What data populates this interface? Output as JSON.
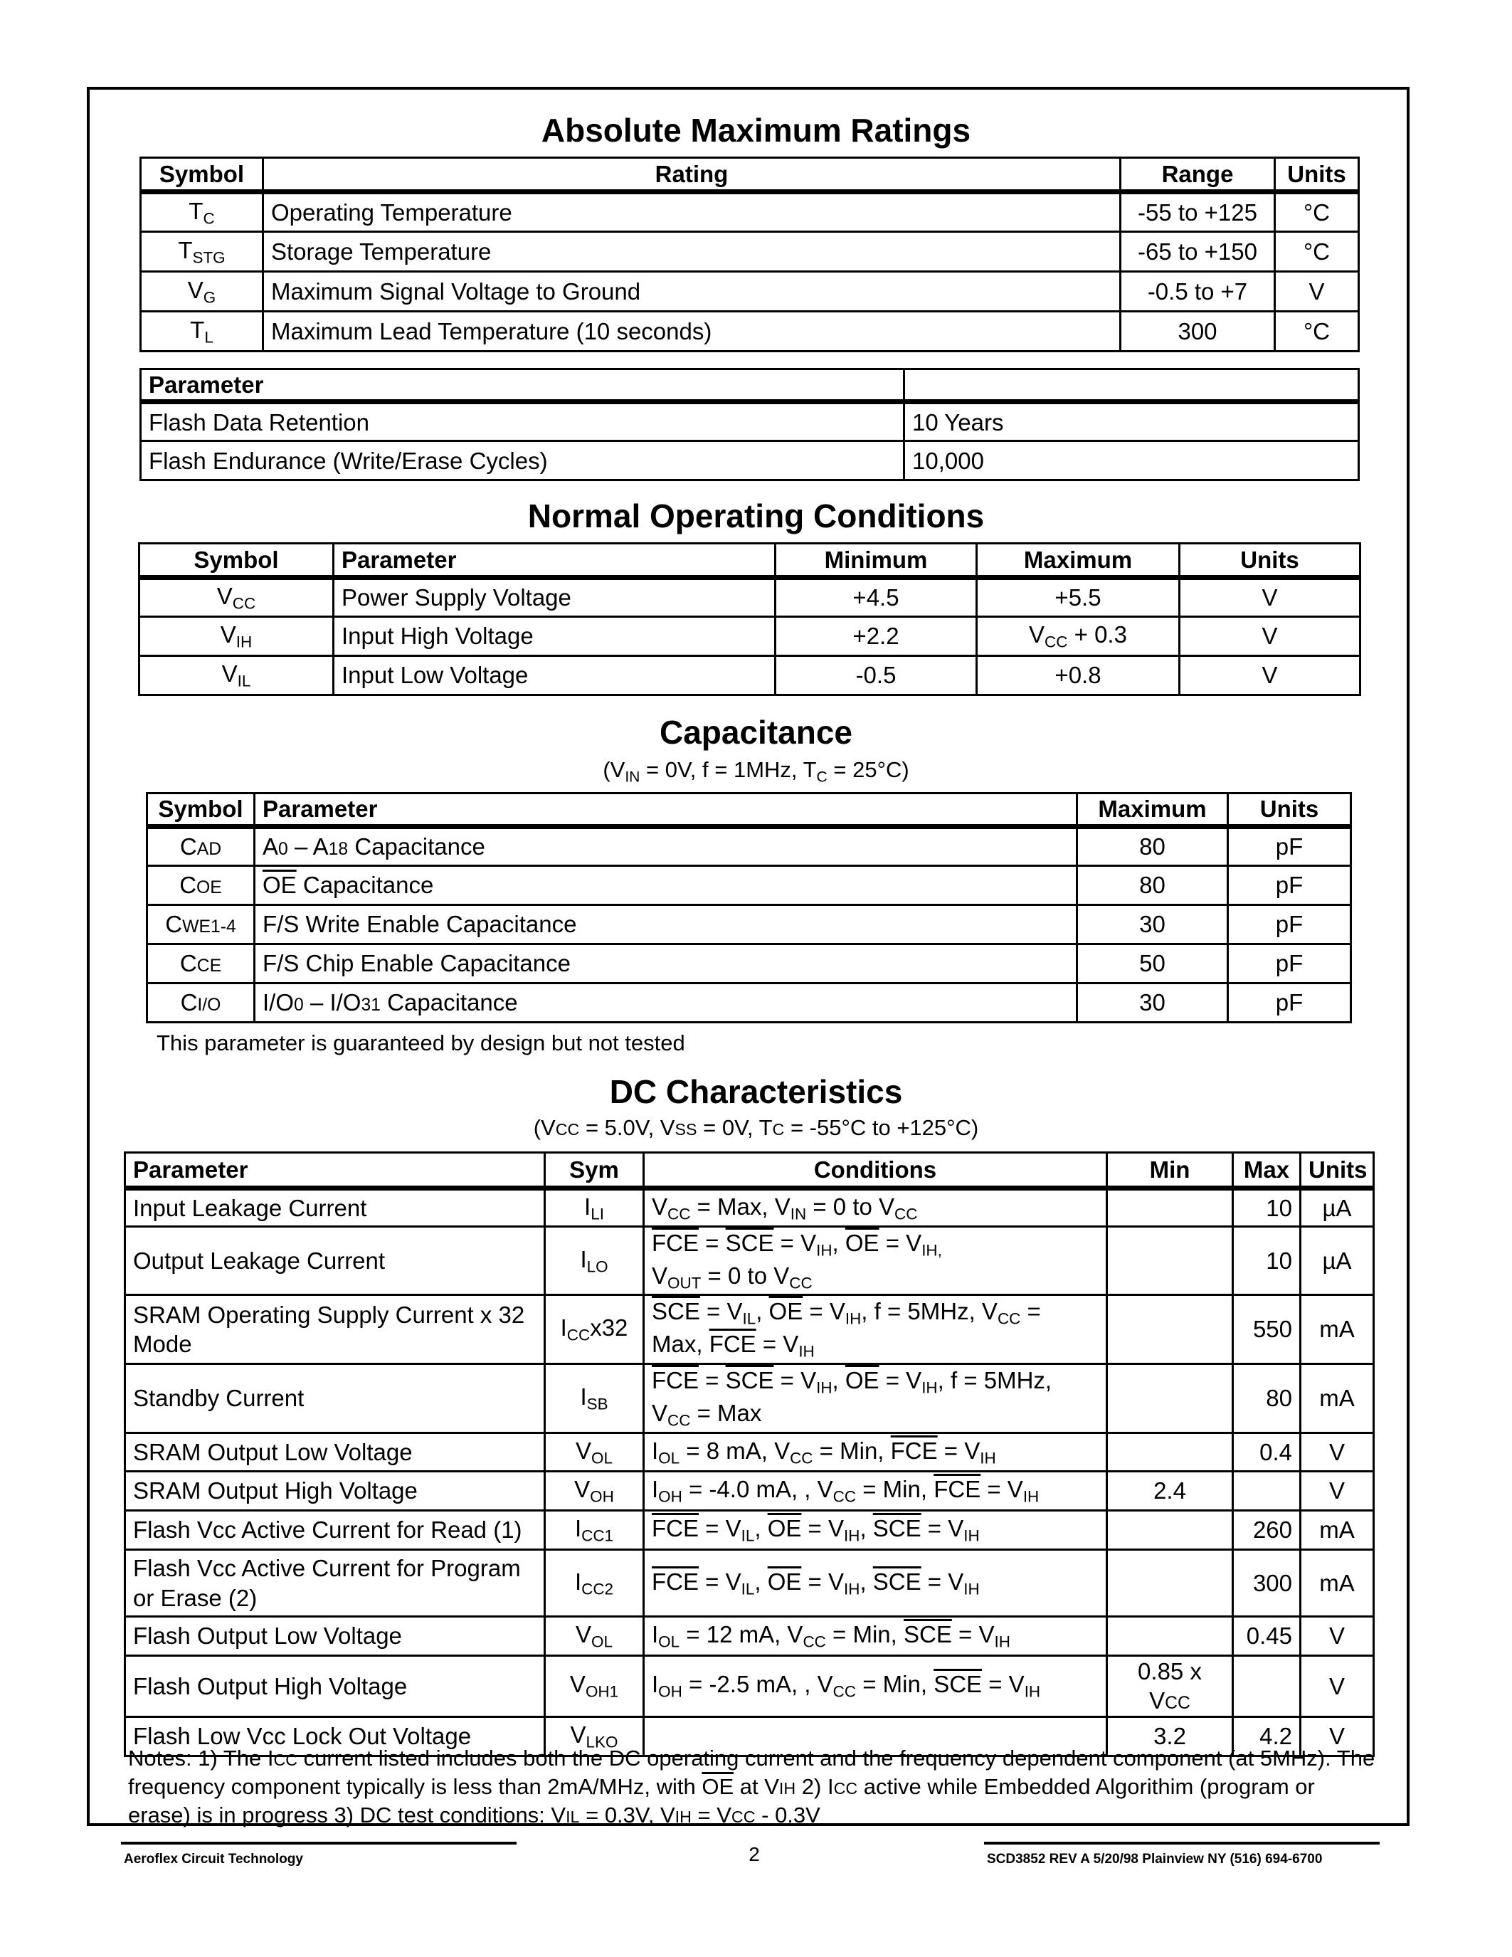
{
  "amr": {
    "title": "Absolute Maximum Ratings",
    "headers": [
      "Symbol",
      "Rating",
      "Range",
      "Units"
    ],
    "rows": [
      [
        "T_{C}",
        "Operating Temperature",
        "-55 to +125",
        "°C"
      ],
      [
        "T_{STG}",
        "Storage Temperature",
        "-65 to +150",
        "°C"
      ],
      [
        "V_{G}",
        "Maximum Signal Voltage to Ground",
        "-0.5 to +7",
        "V"
      ],
      [
        "T_{L}",
        "Maximum Lead Temperature (10 seconds)",
        "300",
        "°C"
      ]
    ]
  },
  "flash": {
    "headers": [
      "Parameter",
      ""
    ],
    "rows": [
      [
        "Flash Data Retention",
        "10 Years"
      ],
      [
        "Flash Endurance (Write/Erase Cycles)",
        "10,000"
      ]
    ]
  },
  "noc": {
    "title": "Normal Operating Conditions",
    "headers": [
      "Symbol",
      "Parameter",
      "Minimum",
      "Maximum",
      "Units"
    ],
    "rows": [
      [
        "V_{CC}",
        "Power Supply Voltage",
        "+4.5",
        "+5.5",
        "V"
      ],
      [
        "V_{IH}",
        "Input High Voltage",
        "+2.2",
        "V_{CC} + 0.3",
        "V"
      ],
      [
        "V_{IL}",
        "Input Low Voltage",
        "-0.5",
        "+0.8",
        "V"
      ]
    ]
  },
  "cap": {
    "title": "Capacitance",
    "subtitle": "(V_{IN} = 0V, f = 1MHz, T_{C} = 25°C)",
    "headers": [
      "Symbol",
      "Parameter",
      "Maximum",
      "Units"
    ],
    "rows": [
      [
        "C^{AD}",
        " A^{0} – A^{18} Capacitance",
        "80",
        "pF"
      ],
      [
        "C^{OE}",
        "~{OE} Capacitance",
        "80",
        "pF"
      ],
      [
        "C^{WE1-4}",
        "F/S Write Enable Capacitance",
        "30",
        "pF"
      ],
      [
        "C^{CE}",
        "F/S Chip Enable Capacitance",
        "50",
        "pF"
      ],
      [
        "C^{I/O}",
        "I/O^{0} – I/O^{31} Capacitance",
        "30",
        "pF"
      ]
    ],
    "note": "This parameter is guaranteed by design but not tested"
  },
  "dc": {
    "title": "DC Characteristics",
    "subtitle": "(V^{CC} = 5.0V, V^{SS} = 0V, T^{C} = -55°C to +125°C)",
    "headers": [
      "Parameter",
      "Sym",
      "Conditions",
      "Min",
      "Max",
      "Units"
    ],
    "rows": [
      [
        "Input Leakage Current",
        "I_{LI}",
        "V_{CC} = Max, V_{IN} = 0 to V_{CC}",
        "",
        "10",
        "µA"
      ],
      [
        "Output Leakage Current",
        "I_{LO}",
        "~{FCE} = ~{SCE} = V_{IH}, ~{OE} = V_{IH,}\n V_{OUT} = 0 to V_{CC}",
        "",
        "10",
        "µA"
      ],
      [
        "SRAM Operating Supply Current x 32 Mode",
        "I_{CC}x32",
        "~{SCE} = V_{IL}, ~{OE} = V_{IH}, f = 5MHz, V_{CC} =\n Max, ~{FCE}  = V_{IH}",
        "",
        "550",
        "mA"
      ],
      [
        "Standby Current",
        "I_{SB}",
        "~{FCE} = ~{SCE} = V_{IH},  ~{OE} = V_{IH}, f = 5MHz,\n V_{CC} = Max",
        "",
        "80",
        "mA"
      ],
      [
        "SRAM Output Low Voltage",
        "V_{OL}",
        "I_{OL} = 8 mA, V_{CC} = Min, ~{FCE}  = V_{IH}",
        "",
        "0.4",
        "V"
      ],
      [
        "SRAM Output High Voltage",
        "V_{OH}",
        "I_{OH} = -4.0 mA, , V_{CC} = Min, ~{FCE}  = V_{IH}",
        "2.4",
        "",
        "V"
      ],
      [
        "Flash Vcc Active Current for Read (1)",
        "I_{CC1}",
        "~{FCE} = V_{IL}, ~{OE} = V_{IH}, ~{SCE} = V_{IH}",
        "",
        "260",
        "mA"
      ],
      [
        "Flash Vcc Active Current for Program\n or Erase (2)",
        "I_{CC2}",
        "~{FCE} = V_{IL}, ~{OE} = V_{IH}, ~{SCE} = V_{IH}",
        "",
        "300",
        "mA"
      ],
      [
        "Flash Output Low Voltage",
        "V_{OL}",
        "I_{OL} = 12 mA, V_{CC} = Min, ~{SCE}  = V_{IH}",
        "",
        "0.45",
        "V"
      ],
      [
        "Flash Output High Voltage",
        "V_{OH1}",
        "I_{OH} = -2.5 mA, , V_{CC} = Min, ~{SCE}  = V_{IH}",
        "0.85 x V^{CC}",
        "",
        "V"
      ],
      [
        "Flash Low Vcc Lock Out Voltage",
        "V_{LKO}",
        "",
        "3.2",
        "4.2",
        "V"
      ]
    ],
    "notes": "Notes:  1) The I^{CC} current listed includes both the DC operating current and the frequency dependent component (at 5MHz). The frequency component typically is less than 2mA/MHz, with ~{OE} at V^{IH}  2) I^{CC} active while Embedded Algorithim (program or erase) is in progress  3) DC test conditions: V^{IL} = 0.3V, V^{IH} = V^{CC} - 0.3V"
  },
  "footer": {
    "left": "Aeroflex Circuit Technology",
    "page": "2",
    "right": "SCD3852 REV A  5/20/98    Plainview NY  (516) 694-6700"
  }
}
